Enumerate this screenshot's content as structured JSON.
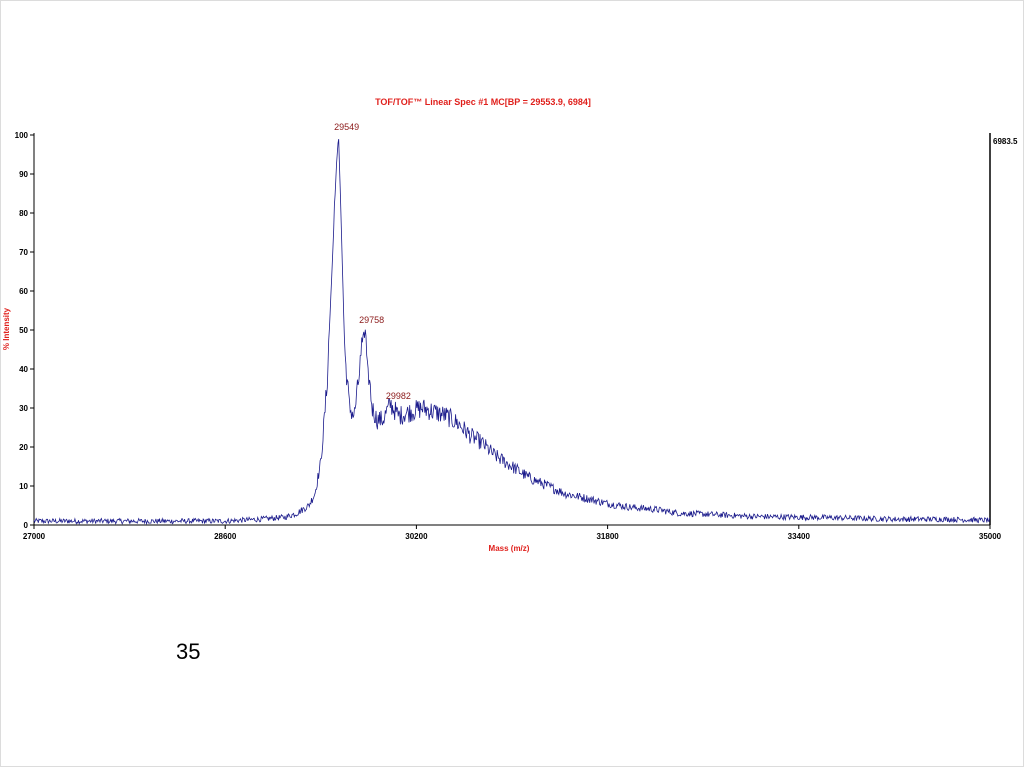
{
  "slide": {
    "number": "35"
  },
  "colors": {
    "trace": "#1c1c8c",
    "title": "#e0201c",
    "peak_label": "#8b1a1a",
    "axis": "#000000"
  },
  "chart_data": {
    "type": "line",
    "title": "TOF/TOF™ Linear Spec #1 MC[BP = 29553.9, 6984]",
    "xlabel": "Mass (m/z)",
    "ylabel": "% Intensity",
    "xlim": [
      27000,
      35000
    ],
    "ylim": [
      0,
      100
    ],
    "x_ticks": [
      "27000",
      "28600",
      "30200",
      "31800",
      "33400",
      "35000"
    ],
    "y_ticks": [
      "0",
      "10",
      "20",
      "30",
      "40",
      "50",
      "60",
      "70",
      "80",
      "90",
      "100"
    ],
    "right_axis_max_label": "6983.5",
    "grid": false,
    "annotations": [
      {
        "text": "29549",
        "x": 29549,
        "y": 100
      },
      {
        "text": "29758",
        "x": 29758,
        "y": 50.5
      },
      {
        "text": "29982",
        "x": 29982,
        "y": 31
      }
    ],
    "series": [
      {
        "x": [
          27000,
          27400,
          27800,
          28200,
          28600,
          28900,
          29100,
          29200,
          29300,
          29350,
          29400,
          29450,
          29500,
          29530,
          29549,
          29570,
          29600,
          29640,
          29680,
          29720,
          29758,
          29790,
          29830,
          29870,
          29920,
          29982,
          30050,
          30150,
          30250,
          30350,
          30450,
          30550,
          30650,
          30750,
          30850,
          31000,
          31150,
          31300,
          31450,
          31600,
          31800,
          32000,
          32200,
          32400,
          32600,
          32800,
          33000,
          33400,
          33800,
          34200,
          34600,
          35000
        ],
        "y": [
          1,
          1,
          1,
          1,
          1,
          1.5,
          2,
          3,
          5,
          8,
          16,
          35,
          70,
          92,
          100,
          78,
          45,
          30,
          28,
          38,
          50,
          42,
          30,
          27,
          27,
          31,
          28,
          29,
          30,
          29,
          28,
          26,
          23,
          21,
          18,
          15,
          12,
          10,
          8,
          7,
          5.5,
          4.5,
          4,
          3,
          2.8,
          2.5,
          2.2,
          2,
          1.8,
          1.5,
          1.5,
          1.2
        ]
      }
    ]
  }
}
